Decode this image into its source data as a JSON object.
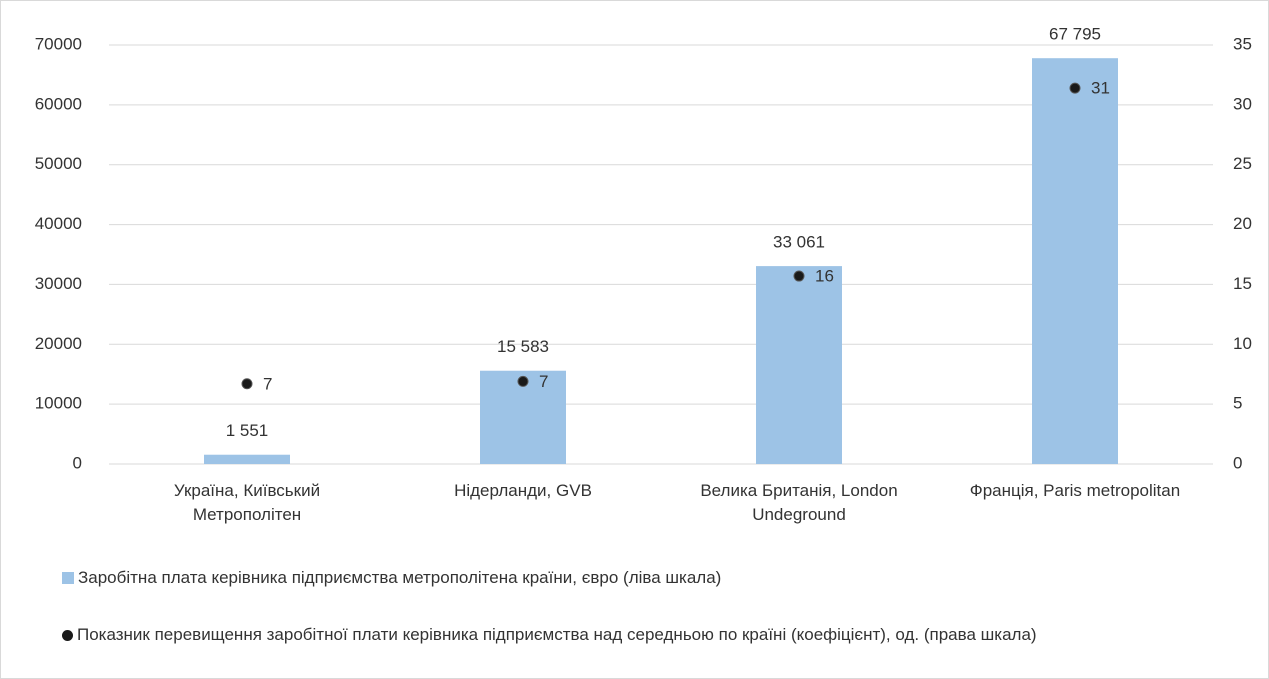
{
  "chart_data": {
    "type": "bar",
    "categories": [
      "Україна, Київський Метрополітен",
      "Нідерланди, GVB",
      "Велика Британія, London Undeground",
      "Франція, Paris metropolitan"
    ],
    "series": [
      {
        "name": "Заробітна плата керівника підприємства метрополітена країни, євро (ліва шкала)",
        "color": "#9dc3e6",
        "type": "bar",
        "values": [
          1551,
          15583,
          33061,
          67795
        ],
        "value_labels": [
          "1 551",
          "15 583",
          "33 061",
          "67 795"
        ]
      },
      {
        "name": "Показник перевищення заробітної плати керівника підприємства  над середньою по країні (коефіцієнт), од. (права шкала)",
        "color": "#1a1a1a",
        "type": "scatter",
        "axis": "y2",
        "values": [
          6.7,
          6.9,
          15.7,
          31.4
        ],
        "value_labels": [
          "7",
          "7",
          "16",
          "31"
        ]
      }
    ],
    "ylim": [
      0,
      70000
    ],
    "yticks": [
      0,
      10000,
      20000,
      30000,
      40000,
      50000,
      60000,
      70000
    ],
    "y2lim": [
      0,
      35
    ],
    "y2ticks": [
      0,
      5,
      10,
      15,
      20,
      25,
      30,
      35
    ],
    "grid": true
  }
}
